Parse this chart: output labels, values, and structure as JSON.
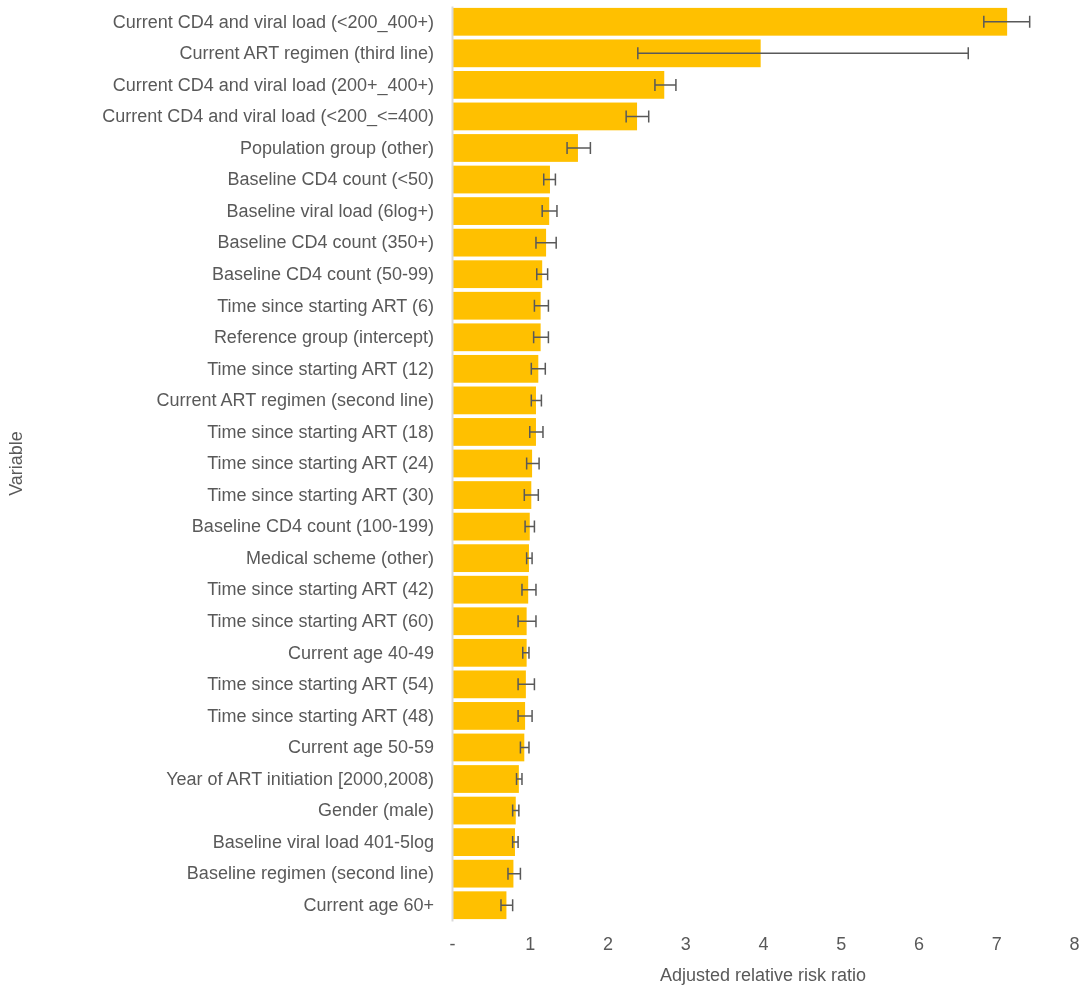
{
  "chart_data": {
    "type": "bar",
    "orientation": "horizontal",
    "xlabel": "Adjusted relative risk ratio",
    "ylabel": "Variable",
    "categories": [
      "Current CD4 and viral load (<200_400+)",
      "Current ART regimen (third line)",
      "Current CD4 and viral load (200+_400+)",
      "Current CD4 and viral load (<200_<=400)",
      "Population group (other)",
      "Baseline CD4 count (<50)",
      "Baseline viral load (6log+)",
      "Baseline CD4 count (350+)",
      "Baseline CD4 count (50-99)",
      "Time since starting ART (6)",
      "Reference group (intercept)",
      "Time since starting ART (12)",
      "Current ART regimen (second line)",
      "Time since starting ART (18)",
      "Time since starting ART (24)",
      "Time since starting ART (30)",
      "Baseline CD4 count (100-199)",
      "Medical scheme (other)",
      "Time since starting ART (42)",
      "Time since starting ART (60)",
      "Current age 40-49",
      "Time since starting ART (54)",
      "Time since starting ART (48)",
      "Current age 50-59",
      "Year of ART initiation [2000,2008)",
      "Gender (male)",
      "Baseline viral load 401-5log",
      "Baseline regimen (second line)",
      "Current age 60+"
    ],
    "values": [
      7.14,
      3.97,
      2.73,
      2.38,
      1.62,
      1.26,
      1.25,
      1.21,
      1.16,
      1.14,
      1.14,
      1.11,
      1.08,
      1.08,
      1.03,
      1.02,
      1.0,
      0.99,
      0.98,
      0.96,
      0.96,
      0.95,
      0.94,
      0.93,
      0.86,
      0.82,
      0.81,
      0.79,
      0.7
    ],
    "errors": [
      [
        6.84,
        7.43
      ],
      [
        2.39,
        6.64
      ],
      [
        2.61,
        2.88
      ],
      [
        2.24,
        2.53
      ],
      [
        1.48,
        1.78
      ],
      [
        1.18,
        1.33
      ],
      [
        1.16,
        1.35
      ],
      [
        1.08,
        1.34
      ],
      [
        1.09,
        1.23
      ],
      [
        1.06,
        1.24
      ],
      [
        1.05,
        1.24
      ],
      [
        1.02,
        1.2
      ],
      [
        1.02,
        1.15
      ],
      [
        1.0,
        1.17
      ],
      [
        0.96,
        1.12
      ],
      [
        0.93,
        1.11
      ],
      [
        0.94,
        1.06
      ],
      [
        0.96,
        1.03
      ],
      [
        0.9,
        1.08
      ],
      [
        0.85,
        1.08
      ],
      [
        0.91,
        0.99
      ],
      [
        0.85,
        1.06
      ],
      [
        0.85,
        1.03
      ],
      [
        0.88,
        0.99
      ],
      [
        0.83,
        0.9
      ],
      [
        0.78,
        0.86
      ],
      [
        0.78,
        0.85
      ],
      [
        0.72,
        0.88
      ],
      [
        0.63,
        0.78
      ]
    ],
    "color": "#ffc000",
    "xlim": [
      0,
      8
    ],
    "xticks": [
      {
        "value": 0,
        "label": "-"
      },
      1,
      2,
      3,
      4,
      5,
      6,
      7,
      8
    ]
  }
}
